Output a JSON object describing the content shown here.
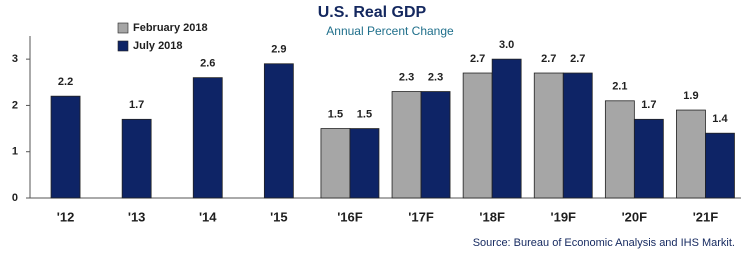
{
  "chart_data": {
    "type": "bar",
    "title": "U.S. Real GDP",
    "subtitle": "Annual Percent Change",
    "source": "Source:  Bureau of Economic Analysis and IHS Markit.",
    "categories": [
      "'12",
      "'13",
      "'14",
      "'15",
      "'16F",
      "'17F",
      "'18F",
      "'19F",
      "'20F",
      "'21F"
    ],
    "series": [
      {
        "name": "February 2018",
        "color": "#a6a6a6",
        "values": [
          null,
          null,
          null,
          null,
          1.5,
          2.3,
          2.7,
          2.7,
          2.1,
          1.9
        ],
        "value_labels": [
          null,
          null,
          null,
          null,
          "1.5",
          "2.3",
          "2.7",
          "2.7",
          "2.1",
          "1.9"
        ]
      },
      {
        "name": "July 2018",
        "color": "#0e2466",
        "values": [
          2.2,
          1.7,
          2.6,
          2.9,
          1.5,
          2.3,
          3.0,
          2.7,
          1.7,
          1.4
        ],
        "value_labels": [
          "2.2",
          "1.7",
          "2.6",
          "2.9",
          "1.5",
          "2.3",
          "3.0",
          "2.7",
          "1.7",
          "1.4"
        ]
      }
    ],
    "ylim": [
      0,
      3.5
    ],
    "yticks": [
      0,
      1,
      2,
      3
    ],
    "grid": false,
    "legend": "top-left"
  }
}
